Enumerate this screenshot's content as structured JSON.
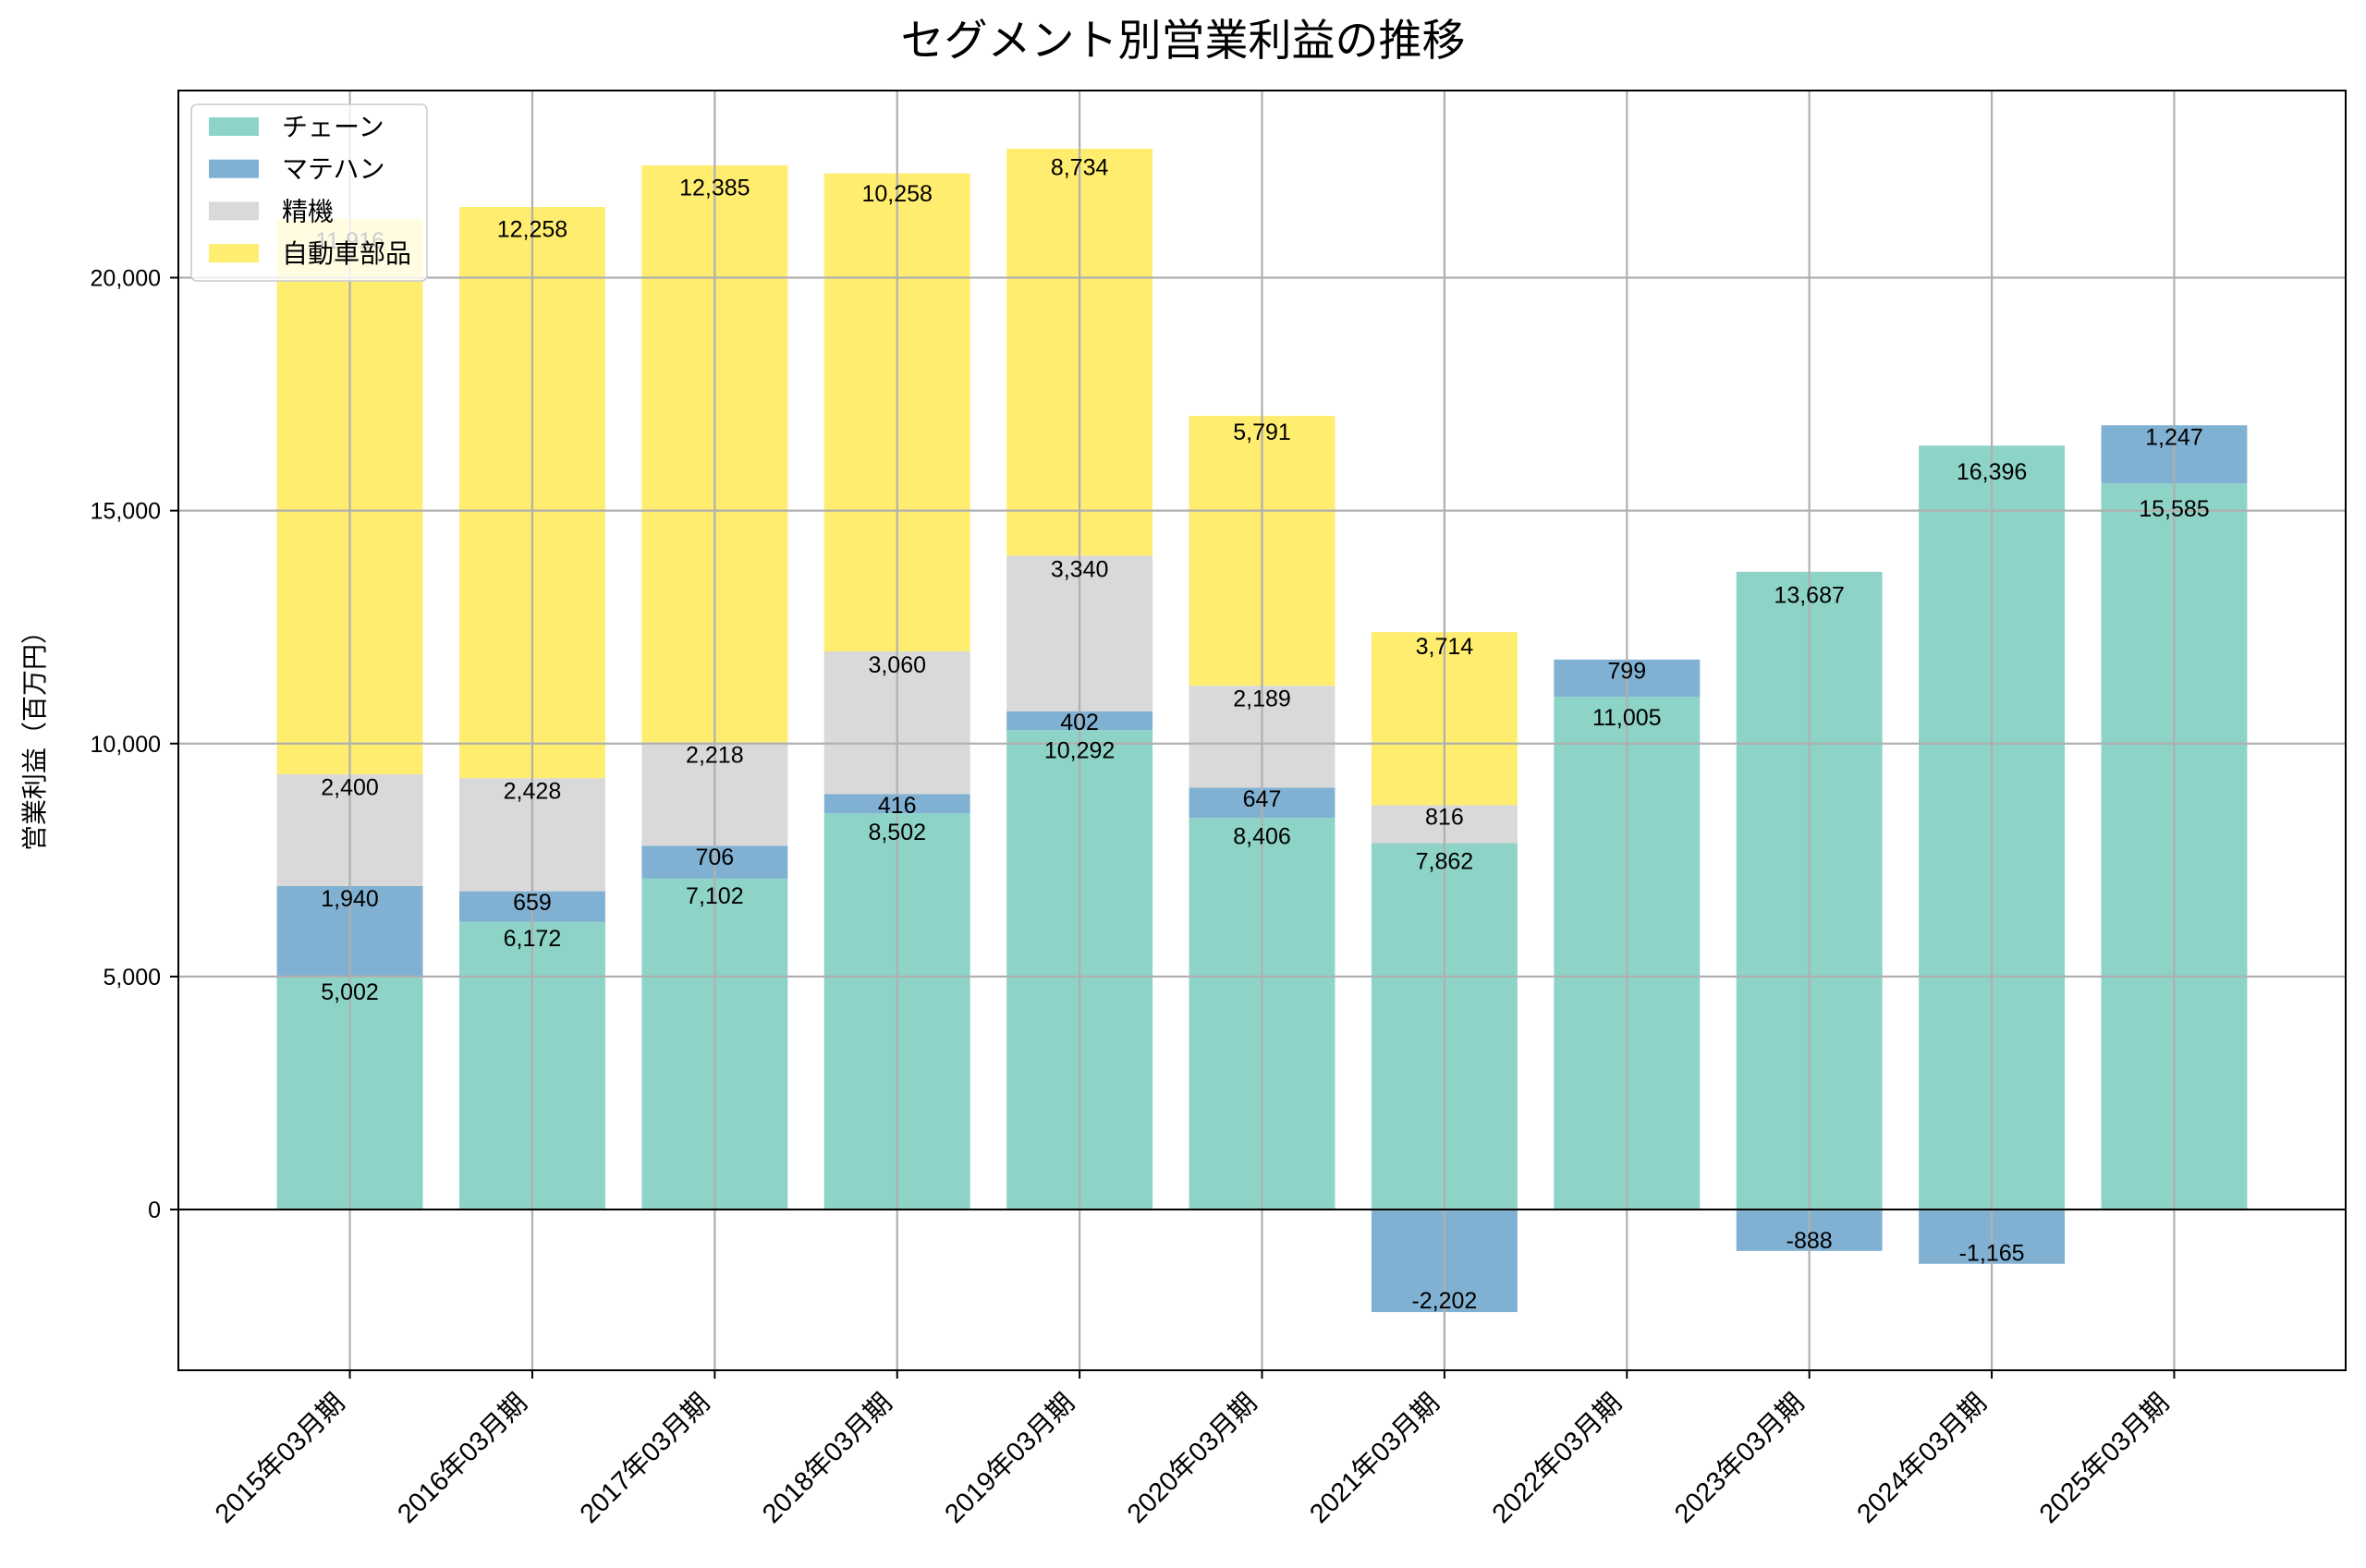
{
  "chart_data": {
    "type": "bar",
    "stacked": true,
    "title": "セグメント別営業利益の推移",
    "ylabel": "営業利益（百万円）",
    "categories": [
      "2015年03月期",
      "2016年03月期",
      "2017年03月期",
      "2018年03月期",
      "2019年03月期",
      "2020年03月期",
      "2021年03月期",
      "2022年03月期",
      "2023年03月期",
      "2024年03月期",
      "2025年03月期"
    ],
    "series": [
      {
        "name": "チェーン",
        "color": "#8dd3c7",
        "values": [
          5002,
          6172,
          7102,
          8502,
          10292,
          8406,
          7862,
          11005,
          13687,
          16396,
          15585
        ],
        "labels": [
          "5,002",
          "6,172",
          "7,102",
          "8,502",
          "10,292",
          "8,406",
          "7,862",
          "11,005",
          "13,687",
          "16,396",
          "15,585"
        ]
      },
      {
        "name": "マテハン",
        "color": "#80b1d3",
        "values": [
          1940,
          659,
          706,
          416,
          402,
          647,
          -2202,
          799,
          -888,
          -1165,
          1247
        ],
        "labels": [
          "1,940",
          "659",
          "706",
          "416",
          "402",
          "647",
          "-2,202",
          "799",
          "-888",
          "-1,165",
          "1,247"
        ]
      },
      {
        "name": "精機",
        "color": "#d9d9d9",
        "values": [
          2400,
          2428,
          2218,
          3060,
          3340,
          2189,
          816,
          null,
          null,
          null,
          null
        ],
        "labels": [
          "2,400",
          "2,428",
          "2,218",
          "3,060",
          "3,340",
          "2,189",
          "816",
          null,
          null,
          null,
          null
        ]
      },
      {
        "name": "自動車部品",
        "color": "#ffed6f",
        "values": [
          11916,
          12258,
          12385,
          10258,
          8734,
          5791,
          3714,
          null,
          null,
          null,
          null
        ],
        "labels": [
          "11,916",
          "12,258",
          "12,385",
          "10,258",
          "8,734",
          "5,791",
          "3,714",
          null,
          null,
          null,
          null
        ]
      }
    ],
    "ylim": [
      -3450,
      24016
    ],
    "yticks": [
      0,
      5000,
      10000,
      15000,
      20000
    ],
    "ytick_labels": [
      "0",
      "5,000",
      "10,000",
      "15,000",
      "20,000"
    ],
    "grid": true,
    "zero_line": true,
    "legend": "upper-left"
  }
}
